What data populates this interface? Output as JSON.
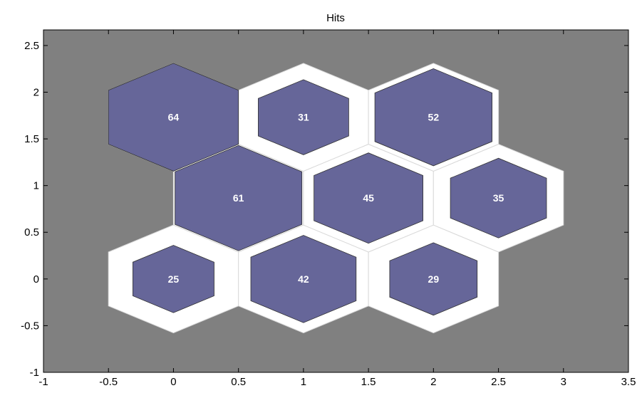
{
  "chart_data": {
    "type": "heatmap",
    "title": "Hits",
    "xlabel": "",
    "ylabel": "",
    "xlim": [
      -1,
      3.5
    ],
    "ylim": [
      -1,
      2.667
    ],
    "xticks": [
      -1,
      -0.5,
      0,
      0.5,
      1,
      1.5,
      2,
      2.5,
      3,
      3.5
    ],
    "xtick_labels": [
      "-1",
      "-0.5",
      "0",
      "0.5",
      "1",
      "1.5",
      "2",
      "2.5",
      "3",
      "3.5"
    ],
    "yticks": [
      -1,
      -0.5,
      0,
      0.5,
      1,
      1.5,
      2,
      2.5
    ],
    "ytick_labels": [
      "-1",
      "-0.5",
      "0",
      "0.5",
      "1",
      "1.5",
      "2",
      "2.5"
    ],
    "grid": false,
    "max_hits": 64,
    "cells": [
      {
        "x": 0,
        "y": 0,
        "hits": 25
      },
      {
        "x": 1,
        "y": 0,
        "hits": 42
      },
      {
        "x": 2,
        "y": 0,
        "hits": 29
      },
      {
        "x": 0.5,
        "y": 0.866,
        "hits": 61
      },
      {
        "x": 1.5,
        "y": 0.866,
        "hits": 45
      },
      {
        "x": 2.5,
        "y": 0.866,
        "hits": 35
      },
      {
        "x": 0,
        "y": 1.732,
        "hits": 64
      },
      {
        "x": 1,
        "y": 1.732,
        "hits": 31
      },
      {
        "x": 2,
        "y": 1.732,
        "hits": 52
      }
    ],
    "colors": {
      "background": "#808080",
      "cell": "#ffffff",
      "hit_fill": "#666699",
      "hit_label": "#ffffff",
      "axis": "#000000"
    }
  }
}
